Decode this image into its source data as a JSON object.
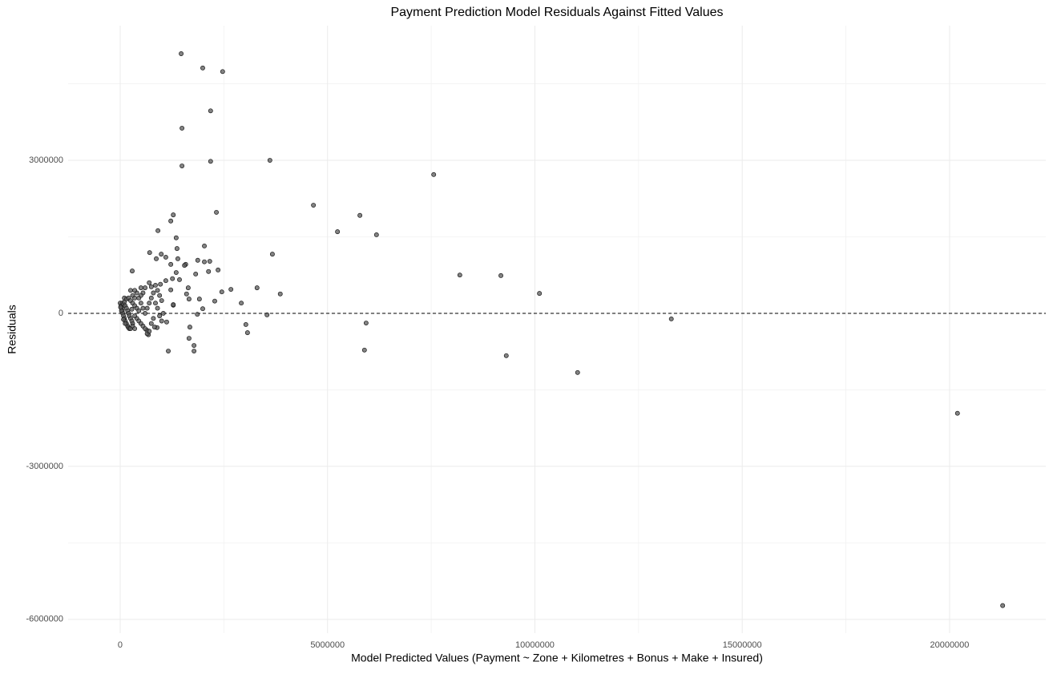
{
  "chart_data": {
    "type": "scatter",
    "title": "Payment Prediction Model Residuals Against Fitted Values",
    "x_label": "Model Predicted Values (Payment ~ Zone + Kilometres + Bonus + Make + Insured)",
    "y_label": "Residuals",
    "xlim": [
      -1256000,
      22320000
    ],
    "ylim": [
      -6270000,
      5640000
    ],
    "xticks": [
      0,
      5000000,
      10000000,
      15000000,
      20000000
    ],
    "yticks": [
      -6000000,
      -3000000,
      0,
      3000000
    ],
    "x_minor_ticks": [
      2500000,
      7500000,
      12500000,
      17500000
    ],
    "y_minor_ticks": [
      -4500000,
      -1500000,
      1500000,
      4500000
    ],
    "grid": true,
    "hline": 0,
    "color": "#595959",
    "x": [
      1470000,
      1990000,
      2470000,
      2180000,
      1490000,
      1490000,
      2180000,
      3610000,
      7560000,
      2320000,
      4660000,
      5780000,
      5240000,
      6180000,
      1280000,
      1220000,
      910000,
      1350000,
      2030000,
      3670000,
      8190000,
      9180000,
      10110000,
      3860000,
      3300000,
      2670000,
      2450000,
      2920000,
      3540000,
      3030000,
      3070000,
      5930000,
      5890000,
      9310000,
      11030000,
      13290000,
      20190000,
      21280000,
      1160000,
      1780000,
      1780000,
      1660000,
      1680000,
      1860000,
      1990000,
      2280000,
      1910000,
      1660000,
      1600000,
      1820000,
      2130000,
      2360000,
      2160000,
      2030000,
      1870000,
      1580000,
      1550000,
      1370000,
      1390000,
      1100000,
      1220000,
      870000,
      710000,
      990000,
      1260000,
      1350000,
      290000,
      1430000,
      1640000,
      1100000,
      970000,
      1220000,
      1280000,
      1040000,
      1120000,
      1280000,
      890000,
      830000,
      680000,
      640000,
      0,
      20000,
      30000,
      50000,
      60000,
      80000,
      100000,
      120000,
      150000,
      180000,
      200000,
      220000,
      250000,
      50000,
      80000,
      100000,
      120000,
      150000,
      180000,
      200000,
      220000,
      250000,
      280000,
      300000,
      100000,
      150000,
      200000,
      250000,
      300000,
      350000,
      400000,
      300000,
      350000,
      400000,
      450000,
      500000,
      550000,
      400000,
      450000,
      500000,
      550000,
      600000,
      650000,
      700000,
      750000,
      800000,
      600000,
      650000,
      700000,
      750000,
      800000,
      600000,
      700000,
      750000,
      850000,
      900000,
      950000,
      1000000,
      850000,
      900000,
      950000,
      1000000,
      350000,
      250000,
      500000,
      550000,
      300000,
      350000,
      120000,
      80000,
      30000,
      10000,
      500000,
      450000,
      350000,
      280000
    ],
    "values": [
      5090000,
      4810000,
      4740000,
      3970000,
      3630000,
      2890000,
      2980000,
      3000000,
      2720000,
      1980000,
      2120000,
      1920000,
      1600000,
      1540000,
      1930000,
      1810000,
      1620000,
      1480000,
      1320000,
      1160000,
      750000,
      740000,
      390000,
      380000,
      500000,
      470000,
      420000,
      200000,
      -30000,
      -220000,
      -380000,
      -190000,
      -720000,
      -830000,
      -1160000,
      -110000,
      -1960000,
      -5730000,
      -740000,
      -740000,
      -630000,
      -490000,
      -270000,
      -20000,
      90000,
      240000,
      280000,
      280000,
      380000,
      770000,
      820000,
      850000,
      1020000,
      1010000,
      1040000,
      960000,
      940000,
      1270000,
      1070000,
      1100000,
      960000,
      1070000,
      1190000,
      1160000,
      680000,
      800000,
      830000,
      660000,
      500000,
      640000,
      570000,
      460000,
      160000,
      0,
      -170000,
      170000,
      -280000,
      -270000,
      -420000,
      -330000,
      200000,
      150000,
      100000,
      50000,
      0,
      -50000,
      -100000,
      -150000,
      -200000,
      -250000,
      -280000,
      -300000,
      -300000,
      200000,
      180000,
      220000,
      150000,
      100000,
      50000,
      0,
      -50000,
      -100000,
      -150000,
      -200000,
      300000,
      280000,
      300000,
      250000,
      200000,
      150000,
      100000,
      350000,
      300000,
      400000,
      300000,
      200000,
      100000,
      -100000,
      -150000,
      -200000,
      -250000,
      -300000,
      -400000,
      -350000,
      -200000,
      -100000,
      0,
      100000,
      200000,
      300000,
      400000,
      500000,
      600000,
      520000,
      550000,
      450000,
      350000,
      250000,
      200000,
      100000,
      -50000,
      -150000,
      450000,
      450000,
      500000,
      400000,
      -250000,
      -300000,
      -200000,
      -120000,
      50000,
      120000,
      350000,
      50000,
      -50000,
      80000
    ]
  }
}
